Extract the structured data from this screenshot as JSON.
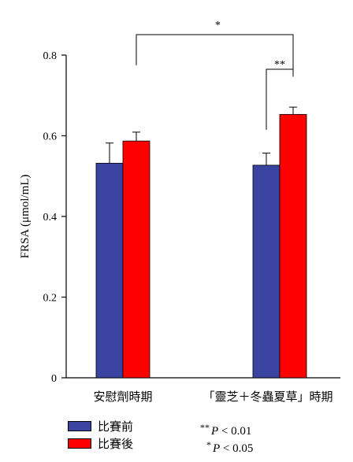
{
  "chart_data": {
    "type": "bar",
    "ylabel": "FRSA (μmol/mL)",
    "ylim": [
      0,
      0.8
    ],
    "yticks": [
      0,
      0.2,
      0.4,
      0.6,
      0.8
    ],
    "ytick_labels": [
      "0",
      "0.2",
      "0.4",
      "0.6",
      "0.8"
    ],
    "categories": [
      "安慰劑時期",
      "「靈芝＋冬蟲夏草」時期"
    ],
    "series": [
      {
        "name": "比賽前",
        "color": "#3a43a0",
        "values": [
          0.532,
          0.527
        ],
        "errors": [
          0.05,
          0.03
        ]
      },
      {
        "name": "比賽後",
        "color": "#ff0000",
        "values": [
          0.587,
          0.653
        ],
        "errors": [
          0.022,
          0.018
        ]
      }
    ],
    "annotations": [
      {
        "text": "*",
        "between": "安慰劑時期 比賽後 vs 「靈芝＋冬蟲夏草」時期 比賽後"
      },
      {
        "text": "**",
        "between": "「靈芝＋冬蟲夏草」時期 比賽前 vs 比賽後"
      }
    ],
    "legend_position": "bottom-left"
  },
  "notes": {
    "p01": {
      "stars": "**",
      "p": "P",
      "text": " < 0.01"
    },
    "p05": {
      "stars": "*",
      "p": "P",
      "text": " < 0.05"
    }
  }
}
